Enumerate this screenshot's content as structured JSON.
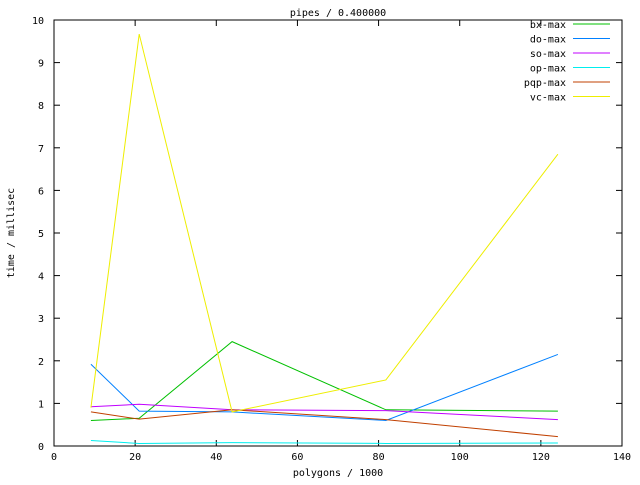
{
  "chart_data": {
    "type": "line",
    "title": "pipes / 0.400000",
    "xlabel": "polygons / 1000",
    "ylabel": "time / millisec",
    "xlim": [
      0,
      140
    ],
    "ylim": [
      0,
      10
    ],
    "xticks": [
      0,
      20,
      40,
      60,
      80,
      100,
      120,
      140
    ],
    "yticks": [
      0,
      1,
      2,
      3,
      4,
      5,
      6,
      7,
      8,
      9,
      10
    ],
    "grid": false,
    "legend": "top-right",
    "x": [
      9.1,
      21,
      43.9,
      81.8,
      124.2
    ],
    "series": [
      {
        "name": "bx-max",
        "color": "#00c000",
        "values": [
          0.6,
          0.65,
          2.45,
          0.85,
          0.82
        ]
      },
      {
        "name": "do-max",
        "color": "#0080ff",
        "values": [
          1.92,
          0.82,
          0.8,
          0.6,
          2.15
        ]
      },
      {
        "name": "so-max",
        "color": "#c000ff",
        "values": [
          0.92,
          0.98,
          0.85,
          0.83,
          0.62
        ]
      },
      {
        "name": "op-max",
        "color": "#00eeee",
        "values": [
          0.13,
          0.06,
          0.08,
          0.06,
          0.07
        ]
      },
      {
        "name": "pqp-max",
        "color": "#c04000",
        "values": [
          0.8,
          0.63,
          0.85,
          0.62,
          0.22
        ]
      },
      {
        "name": "vc-max",
        "color": "#eeee00",
        "values": [
          0.9,
          9.67,
          0.8,
          1.55,
          6.85
        ]
      }
    ]
  }
}
